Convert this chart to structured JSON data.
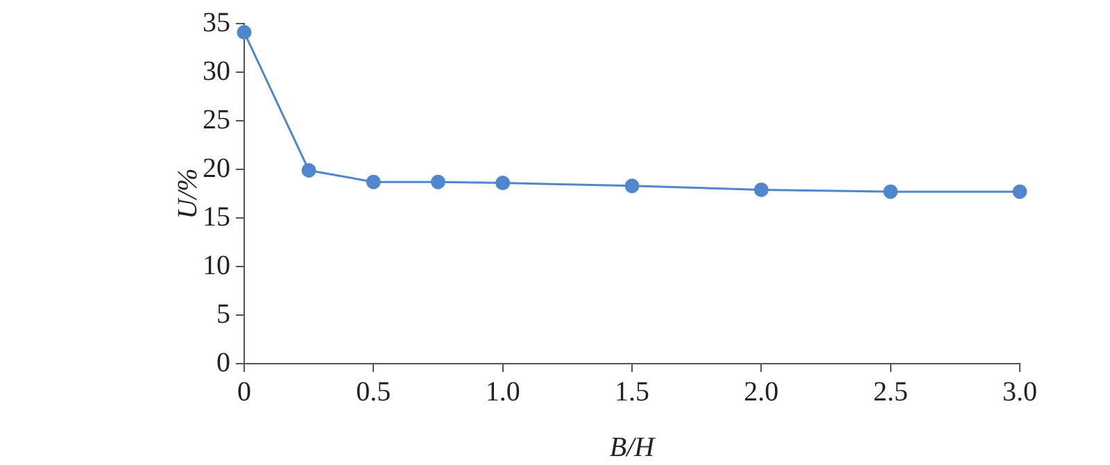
{
  "chart_data": {
    "type": "line",
    "xlabel": "B/H",
    "ylabel": "U/%",
    "x": [
      0,
      0.25,
      0.5,
      0.75,
      1.0,
      1.5,
      2.0,
      2.5,
      3.0
    ],
    "series": [
      {
        "color": "#4f86cc",
        "values": [
          34.1,
          19.9,
          18.7,
          18.7,
          18.6,
          18.3,
          17.9,
          17.7,
          17.7
        ]
      }
    ],
    "xlim": [
      0,
      3
    ],
    "xticks": [
      0,
      0.5,
      {
        "value": 1,
        "label": "1.0"
      },
      1.5,
      {
        "value": 2,
        "label": "2.0"
      },
      2.5,
      {
        "value": 3,
        "label": "3.0"
      }
    ],
    "ylim": [
      0,
      35
    ],
    "yticks": [
      0,
      5,
      10,
      15,
      20,
      25,
      30,
      35
    ],
    "grid": false,
    "legend": false,
    "marker": "circle",
    "line_style": "solid"
  }
}
